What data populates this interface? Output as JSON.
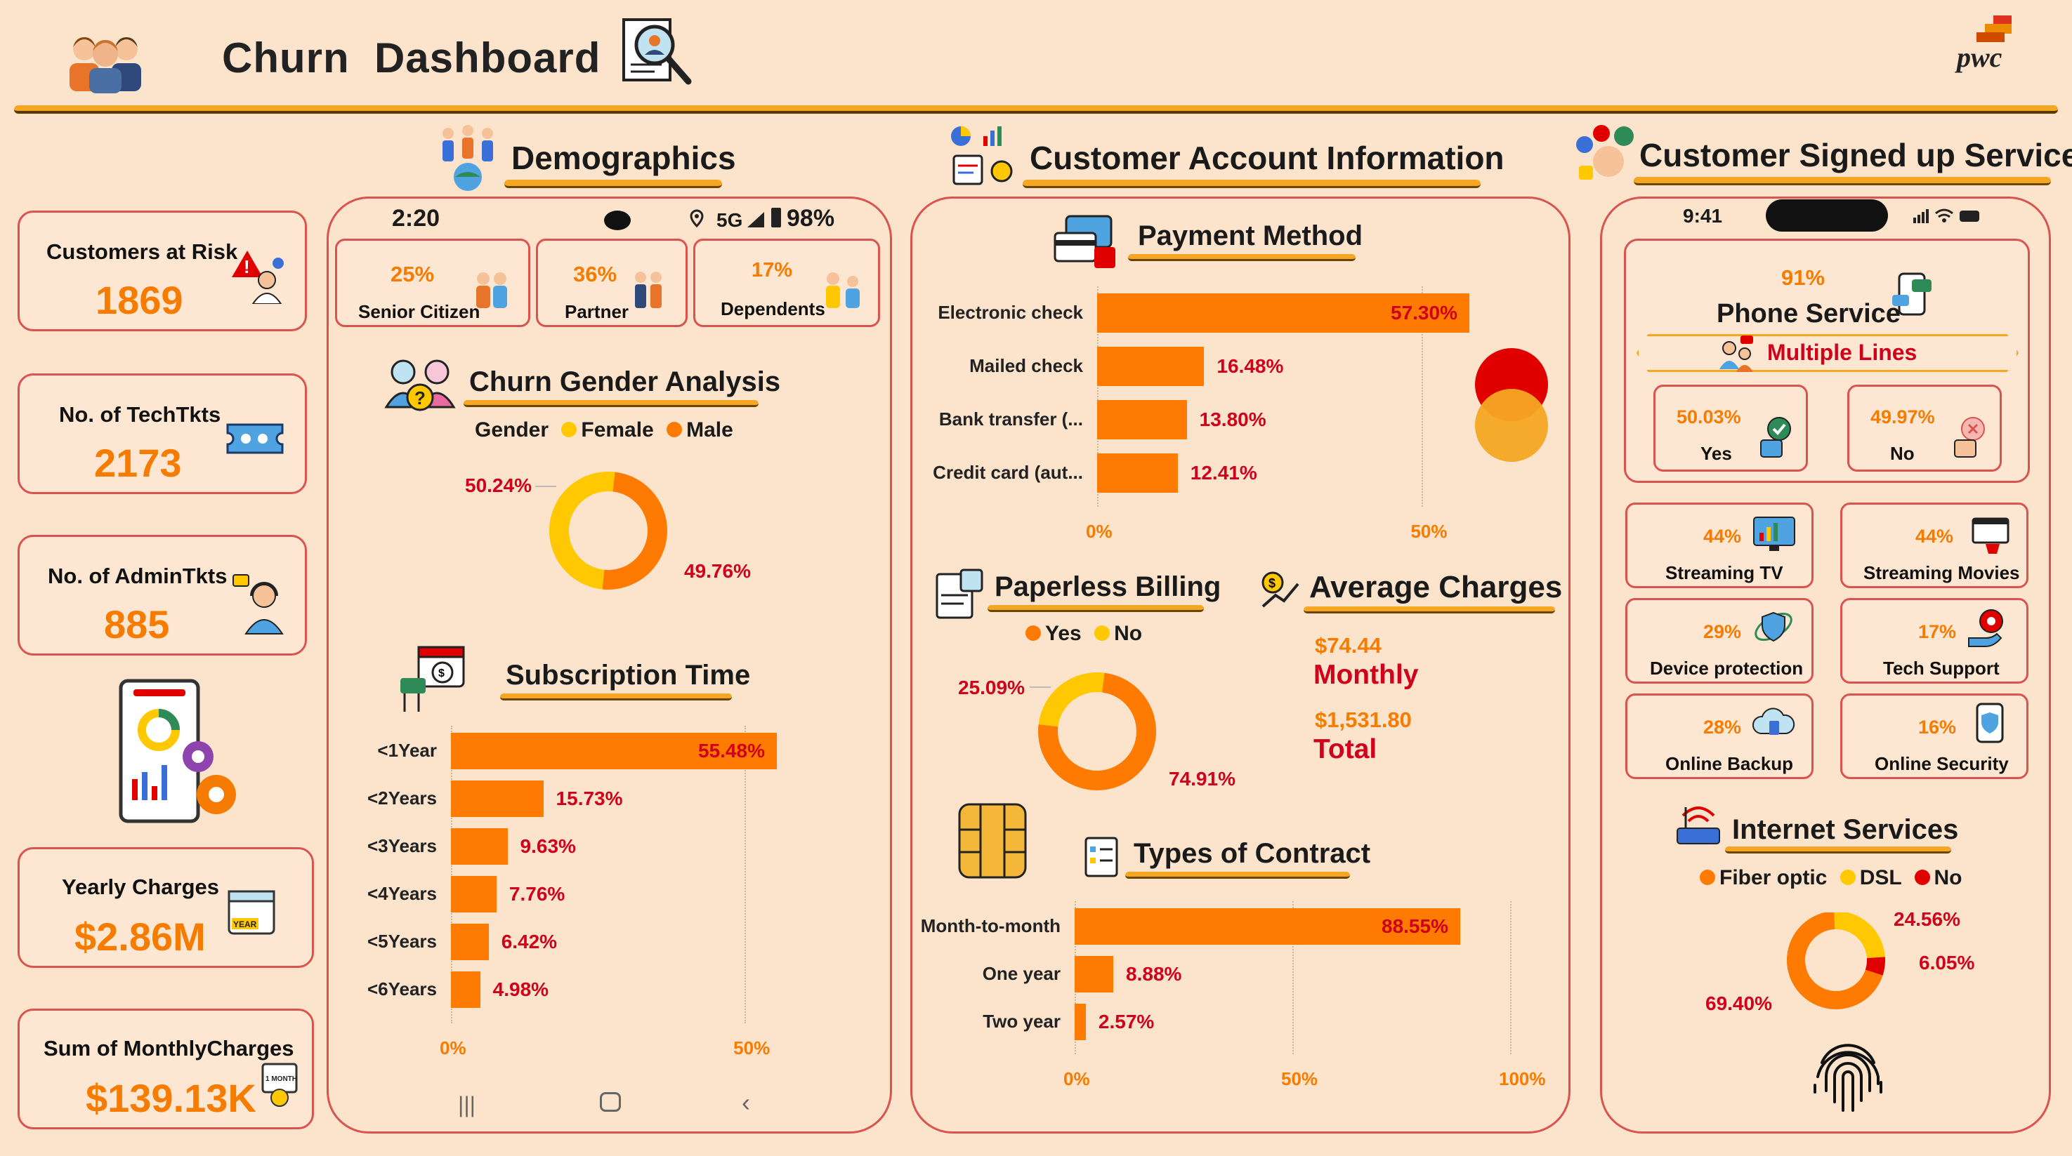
{
  "header": {
    "title": "Churn  Dashboard",
    "brand": "pwc"
  },
  "sections": {
    "demographics": "Demographics",
    "account": "Customer Account Information",
    "services": "Customer Signed up Services"
  },
  "kpis": [
    {
      "label": "Customers at Risk",
      "value": "1869",
      "icon": "warning-person-icon"
    },
    {
      "label": "No. of TechTkts",
      "value": "2173",
      "icon": "ticket-icon"
    },
    {
      "label": "No. of AdminTkts",
      "value": "885",
      "icon": "support-agent-icon"
    },
    {
      "label": "Yearly Charges",
      "value": "$2.86M",
      "icon": "calendar-year-icon"
    },
    {
      "label": "Sum of MonthlyCharges",
      "value": "$139.13K",
      "icon": "calendar-month-icon"
    }
  ],
  "phone1": {
    "time": "2:20",
    "status": "5G",
    "battery": "98%"
  },
  "demo_cards": [
    {
      "pct": "25%",
      "label": "Senior Citizen"
    },
    {
      "pct": "36%",
      "label": "Partner"
    },
    {
      "pct": "17%",
      "label": "Dependents"
    }
  ],
  "gender": {
    "title": "Churn Gender Analysis",
    "legend_title": "Gender",
    "female_label": "Female",
    "male_label": "Male",
    "female_pct": "50.24%",
    "male_pct": "49.76%"
  },
  "subscription": {
    "title": "Subscription Time"
  },
  "payment": {
    "title": "Payment Method"
  },
  "paperless": {
    "title": "Paperless Billing",
    "yes_label": "Yes",
    "no_label": "No",
    "yes_pct": "74.91%",
    "no_pct": "25.09%"
  },
  "avg_charges": {
    "title": "Average Charges",
    "monthly_value": "$74.44",
    "monthly_label": "Monthly",
    "total_value": "$1,531.80",
    "total_label": "Total"
  },
  "contract": {
    "title": "Types of Contract"
  },
  "phone2": {
    "time": "9:41"
  },
  "phone_service": {
    "pct": "91%",
    "label": "Phone Service",
    "multiple_lines": "Multiple Lines",
    "yes_pct": "50.03%",
    "yes_label": "Yes",
    "no_pct": "49.97%",
    "no_label": "No"
  },
  "services": [
    {
      "pct": "44%",
      "label": "Streaming TV",
      "icon": "tv-chart-icon"
    },
    {
      "pct": "44%",
      "label": "Streaming Movies",
      "icon": "movie-icon"
    },
    {
      "pct": "29%",
      "label": "Device protection",
      "icon": "shield-device-icon"
    },
    {
      "pct": "17%",
      "label": "Tech Support",
      "icon": "gear-hand-icon"
    },
    {
      "pct": "28%",
      "label": "Online Backup",
      "icon": "cloud-backup-icon"
    },
    {
      "pct": "16%",
      "label": "Online Security",
      "icon": "phone-shield-icon"
    }
  ],
  "internet": {
    "title": "Internet Services",
    "fiber_label": "Fiber optic",
    "dsl_label": "DSL",
    "no_label": "No",
    "fiber_pct": "69.40%",
    "dsl_pct": "24.56%",
    "no_pct": "6.05%"
  },
  "colors": {
    "background": "#FCE4CC",
    "orange": "#FF7A00",
    "yellow": "#FFC800",
    "red": "#E00000",
    "border": "#D9534F"
  },
  "chart_data": [
    {
      "type": "bar",
      "title": "Subscription Time",
      "categories": [
        "<1Year",
        "<2Years",
        "<3Years",
        "<4Years",
        "<5Years",
        "<6Years"
      ],
      "values": [
        55.48,
        15.73,
        9.63,
        7.76,
        6.42,
        4.98
      ],
      "value_labels": [
        "55.48%",
        "15.73%",
        "9.63%",
        "7.76%",
        "6.42%",
        "4.98%"
      ],
      "xlim": [
        0,
        55.48
      ],
      "ticks": [
        "0%",
        "50%"
      ]
    },
    {
      "type": "bar",
      "title": "Payment Method",
      "categories": [
        "Electronic check",
        "Mailed check",
        "Bank transfer (...",
        "Credit card (aut..."
      ],
      "values": [
        57.3,
        16.48,
        13.8,
        12.41
      ],
      "value_labels": [
        "57.30%",
        "16.48%",
        "13.80%",
        "12.41%"
      ],
      "xlim": [
        0,
        57.3
      ],
      "ticks": [
        "0%",
        "50%"
      ]
    },
    {
      "type": "bar",
      "title": "Types of Contract",
      "categories": [
        "Month-to-month",
        "One year",
        "Two year"
      ],
      "values": [
        88.55,
        8.88,
        2.57
      ],
      "value_labels": [
        "88.55%",
        "8.88%",
        "2.57%"
      ],
      "xlim": [
        0,
        100
      ],
      "ticks": [
        "0%",
        "50%",
        "100%"
      ]
    },
    {
      "type": "pie",
      "title": "Churn Gender Analysis",
      "series": [
        {
          "name": "Female",
          "value": 50.24
        },
        {
          "name": "Male",
          "value": 49.76
        }
      ]
    },
    {
      "type": "pie",
      "title": "Paperless Billing",
      "series": [
        {
          "name": "Yes",
          "value": 74.91
        },
        {
          "name": "No",
          "value": 25.09
        }
      ]
    },
    {
      "type": "pie",
      "title": "Internet Services",
      "series": [
        {
          "name": "Fiber optic",
          "value": 69.4
        },
        {
          "name": "DSL",
          "value": 24.56
        },
        {
          "name": "No",
          "value": 6.05
        }
      ]
    }
  ]
}
